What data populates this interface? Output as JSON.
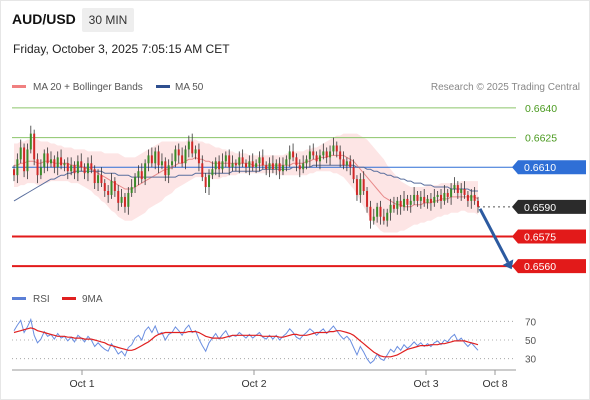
{
  "header": {
    "pair": "AUD/USD",
    "timeframe": "30 MIN",
    "timestamp": "Friday, October 3, 2025 7:05:15 AM CET"
  },
  "legend": {
    "ma20": {
      "label": "MA 20 + Bollinger Bands",
      "color": "#f08080"
    },
    "ma50": {
      "label": "MA 50",
      "color": "#2e4f8f"
    }
  },
  "copyright": "Research © 2025 Trading Central",
  "rsi_legend": {
    "rsi": {
      "label": "RSI",
      "color": "#5b7fd6"
    },
    "ma9": {
      "label": "9MA",
      "color": "#e02020"
    }
  },
  "chart_data": [
    {
      "type": "candlestick",
      "x_ticks": [
        "Oct 1",
        "Oct 2",
        "Oct 3",
        "Oct 8"
      ],
      "ylim": [
        0.6552,
        0.6645
      ],
      "levels": [
        {
          "name": "resistance-2",
          "value": 0.664,
          "label": "0.6640",
          "style": "green-line"
        },
        {
          "name": "resistance-1",
          "value": 0.6625,
          "label": "0.6625",
          "style": "green-line"
        },
        {
          "name": "pivot",
          "value": 0.661,
          "label": "0.6610",
          "style": "blue-tag"
        },
        {
          "name": "last-price",
          "value": 0.659,
          "label": "0.6590",
          "style": "dark-tag"
        },
        {
          "name": "support-1",
          "value": 0.6575,
          "label": "0.6575",
          "style": "red-tag"
        },
        {
          "name": "support-2",
          "value": 0.656,
          "label": "0.6560",
          "style": "red-tag"
        }
      ],
      "close": [
        0.6606,
        0.6614,
        0.662,
        0.6608,
        0.6619,
        0.6627,
        0.6614,
        0.6606,
        0.661,
        0.6617,
        0.6612,
        0.6614,
        0.661,
        0.6615,
        0.6611,
        0.6612,
        0.6608,
        0.6611,
        0.6607,
        0.6613,
        0.661,
        0.6607,
        0.6612,
        0.6609,
        0.6602,
        0.6606,
        0.6602,
        0.6598,
        0.6596,
        0.6603,
        0.6598,
        0.6592,
        0.6595,
        0.659,
        0.6597,
        0.66,
        0.6605,
        0.6608,
        0.6604,
        0.6612,
        0.6616,
        0.6612,
        0.6618,
        0.6611,
        0.6613,
        0.6606,
        0.6611,
        0.6613,
        0.6619,
        0.6616,
        0.6612,
        0.6619,
        0.6623,
        0.6617,
        0.6619,
        0.6612,
        0.6605,
        0.66,
        0.6606,
        0.6609,
        0.6613,
        0.6609,
        0.6613,
        0.6616,
        0.661,
        0.6612,
        0.6611,
        0.6615,
        0.6612,
        0.661,
        0.6613,
        0.661,
        0.6612,
        0.6615,
        0.6611,
        0.6609,
        0.6612,
        0.6609,
        0.6612,
        0.6608,
        0.6611,
        0.6614,
        0.6618,
        0.6615,
        0.6611,
        0.6609,
        0.6612,
        0.6614,
        0.6618,
        0.6616,
        0.6613,
        0.6616,
        0.6618,
        0.6615,
        0.6618,
        0.6621,
        0.6618,
        0.6614,
        0.6611,
        0.6613,
        0.661,
        0.6604,
        0.6596,
        0.6604,
        0.6598,
        0.659,
        0.6583,
        0.6585,
        0.659,
        0.6585,
        0.6583,
        0.6587,
        0.6591,
        0.6589,
        0.6593,
        0.659,
        0.6594,
        0.6591,
        0.6593,
        0.6596,
        0.6593,
        0.6595,
        0.6592,
        0.6594,
        0.6592,
        0.6595,
        0.6596,
        0.6593,
        0.6597,
        0.6595,
        0.6599,
        0.6601,
        0.6597,
        0.6599,
        0.6596,
        0.6593,
        0.6596,
        0.6593,
        0.659
      ],
      "ma20": [
        0.6611,
        0.6611,
        0.6612,
        0.6612,
        0.6613,
        0.6613,
        0.6613,
        0.6612,
        0.6612,
        0.6613,
        0.6613,
        0.6613,
        0.6612,
        0.6612,
        0.6612,
        0.6612,
        0.6612,
        0.6611,
        0.6611,
        0.6611,
        0.661,
        0.661,
        0.6609,
        0.6609,
        0.6608,
        0.6607,
        0.6606,
        0.6605,
        0.6604,
        0.6603,
        0.6602,
        0.6601,
        0.66,
        0.6599,
        0.6599,
        0.6599,
        0.66,
        0.6601,
        0.6602,
        0.6603,
        0.6604,
        0.6605,
        0.6606,
        0.6607,
        0.6608,
        0.6609,
        0.6609,
        0.661,
        0.6611,
        0.6612,
        0.6612,
        0.6613,
        0.6614,
        0.6614,
        0.6615,
        0.6614,
        0.6614,
        0.6613,
        0.6613,
        0.6612,
        0.6612,
        0.6612,
        0.6612,
        0.6612,
        0.6612,
        0.6612,
        0.6612,
        0.6612,
        0.6612,
        0.6612,
        0.6612,
        0.6611,
        0.6611,
        0.6611,
        0.6611,
        0.6611,
        0.6611,
        0.6611,
        0.6611,
        0.6611,
        0.6611,
        0.6611,
        0.6611,
        0.6612,
        0.6612,
        0.6612,
        0.6612,
        0.6613,
        0.6613,
        0.6614,
        0.6614,
        0.6615,
        0.6615,
        0.6615,
        0.6616,
        0.6616,
        0.6616,
        0.6616,
        0.6616,
        0.6615,
        0.6614,
        0.6613,
        0.6611,
        0.6609,
        0.6607,
        0.6605,
        0.6603,
        0.6601,
        0.6599,
        0.6597,
        0.6595,
        0.6594,
        0.6593,
        0.6592,
        0.6591,
        0.6591,
        0.659,
        0.659,
        0.659,
        0.6591,
        0.6591,
        0.6591,
        0.6592,
        0.6592,
        0.6592,
        0.6593,
        0.6593,
        0.6594,
        0.6594,
        0.6594,
        0.6595,
        0.6595,
        0.6595,
        0.6595,
        0.6595,
        0.6595,
        0.6595,
        0.6595,
        0.6594
      ],
      "bb_upper": [
        0.6622,
        0.6622,
        0.6623,
        0.6623,
        0.6624,
        0.6624,
        0.6624,
        0.6624,
        0.6623,
        0.6623,
        0.6623,
        0.6622,
        0.6622,
        0.6621,
        0.6621,
        0.662,
        0.662,
        0.662,
        0.6619,
        0.6619,
        0.6619,
        0.6619,
        0.6618,
        0.6618,
        0.6618,
        0.6618,
        0.6618,
        0.6617,
        0.6617,
        0.6617,
        0.6617,
        0.6617,
        0.6616,
        0.6615,
        0.6615,
        0.6615,
        0.6615,
        0.6616,
        0.6617,
        0.6618,
        0.6619,
        0.662,
        0.6621,
        0.6622,
        0.6623,
        0.6623,
        0.6623,
        0.6623,
        0.6623,
        0.6623,
        0.6623,
        0.6623,
        0.6624,
        0.6624,
        0.6624,
        0.6623,
        0.6623,
        0.6622,
        0.6622,
        0.6621,
        0.662,
        0.662,
        0.6619,
        0.6619,
        0.6618,
        0.6618,
        0.6617,
        0.6617,
        0.6617,
        0.6617,
        0.6616,
        0.6616,
        0.6616,
        0.6616,
        0.6616,
        0.6616,
        0.6616,
        0.6616,
        0.6616,
        0.6616,
        0.6616,
        0.6617,
        0.6617,
        0.6617,
        0.6618,
        0.6618,
        0.6618,
        0.6619,
        0.6619,
        0.662,
        0.662,
        0.6621,
        0.6622,
        0.6623,
        0.6624,
        0.6625,
        0.6626,
        0.6626,
        0.6627,
        0.6627,
        0.6627,
        0.6627,
        0.6627,
        0.6626,
        0.6625,
        0.6624,
        0.6622,
        0.662,
        0.6618,
        0.6616,
        0.6614,
        0.6611,
        0.6609,
        0.6607,
        0.6605,
        0.6603,
        0.6602,
        0.6601,
        0.66,
        0.66,
        0.66,
        0.66,
        0.66,
        0.6601,
        0.6601,
        0.6601,
        0.6601,
        0.6602,
        0.6602,
        0.6602,
        0.6602,
        0.6602,
        0.6602,
        0.6603,
        0.6603,
        0.6603,
        0.6603,
        0.6603,
        0.6603
      ],
      "bb_lower": [
        0.66,
        0.66,
        0.6601,
        0.6601,
        0.6602,
        0.6602,
        0.6602,
        0.6601,
        0.6601,
        0.6602,
        0.6602,
        0.6603,
        0.6603,
        0.6603,
        0.6603,
        0.6603,
        0.6603,
        0.6602,
        0.6602,
        0.6602,
        0.6601,
        0.66,
        0.6599,
        0.6598,
        0.6596,
        0.6595,
        0.6593,
        0.6592,
        0.659,
        0.6588,
        0.6587,
        0.6585,
        0.6584,
        0.6583,
        0.6583,
        0.6583,
        0.6584,
        0.6585,
        0.6586,
        0.6587,
        0.6589,
        0.659,
        0.6591,
        0.6592,
        0.6593,
        0.6595,
        0.6596,
        0.6597,
        0.6599,
        0.66,
        0.6601,
        0.6602,
        0.6603,
        0.6604,
        0.6605,
        0.6605,
        0.6605,
        0.6605,
        0.6605,
        0.6604,
        0.6604,
        0.6604,
        0.6605,
        0.6605,
        0.6606,
        0.6606,
        0.6606,
        0.6607,
        0.6607,
        0.6607,
        0.6607,
        0.6607,
        0.6607,
        0.6607,
        0.6607,
        0.6607,
        0.6607,
        0.6607,
        0.6607,
        0.6606,
        0.6606,
        0.6606,
        0.6606,
        0.6606,
        0.6606,
        0.6606,
        0.6606,
        0.6606,
        0.6607,
        0.6607,
        0.6608,
        0.6608,
        0.6608,
        0.6608,
        0.6608,
        0.6607,
        0.6607,
        0.6606,
        0.6605,
        0.6603,
        0.6601,
        0.6599,
        0.6596,
        0.6593,
        0.659,
        0.6587,
        0.6584,
        0.6582,
        0.658,
        0.6578,
        0.6577,
        0.6577,
        0.6577,
        0.6577,
        0.6577,
        0.6578,
        0.6578,
        0.6579,
        0.658,
        0.6581,
        0.6581,
        0.6582,
        0.6582,
        0.6583,
        0.6583,
        0.6584,
        0.6585,
        0.6585,
        0.6586,
        0.6586,
        0.6587,
        0.6587,
        0.6587,
        0.6588,
        0.6588,
        0.6587,
        0.6587,
        0.6587,
        0.6586,
        0.6585
      ],
      "ma50": [
        0.6593,
        0.6594,
        0.6595,
        0.6596,
        0.6597,
        0.6598,
        0.6599,
        0.66,
        0.6601,
        0.6602,
        0.6603,
        0.6604,
        0.6604,
        0.6605,
        0.6606,
        0.6606,
        0.6607,
        0.6607,
        0.6608,
        0.6608,
        0.6608,
        0.6608,
        0.6608,
        0.6608,
        0.6608,
        0.6608,
        0.6608,
        0.6607,
        0.6607,
        0.6607,
        0.6607,
        0.6606,
        0.6606,
        0.6606,
        0.6606,
        0.6605,
        0.6605,
        0.6605,
        0.6605,
        0.6605,
        0.6605,
        0.6605,
        0.6605,
        0.6605,
        0.6605,
        0.6605,
        0.6605,
        0.6605,
        0.6605,
        0.6606,
        0.6606,
        0.6606,
        0.6606,
        0.6606,
        0.6607,
        0.6607,
        0.6607,
        0.6607,
        0.6607,
        0.6607,
        0.6607,
        0.6607,
        0.6607,
        0.6607,
        0.6607,
        0.6608,
        0.6608,
        0.6608,
        0.6608,
        0.6608,
        0.6608,
        0.6608,
        0.6608,
        0.6608,
        0.6609,
        0.6609,
        0.6609,
        0.6609,
        0.6609,
        0.6609,
        0.6609,
        0.6609,
        0.6609,
        0.661,
        0.661,
        0.661,
        0.661,
        0.661,
        0.661,
        0.6611,
        0.6611,
        0.6611,
        0.6611,
        0.6611,
        0.6611,
        0.6611,
        0.6611,
        0.6611,
        0.6611,
        0.6611,
        0.6611,
        0.6611,
        0.661,
        0.661,
        0.661,
        0.6609,
        0.6609,
        0.6608,
        0.6608,
        0.6607,
        0.6607,
        0.6606,
        0.6606,
        0.6605,
        0.6605,
        0.6604,
        0.6604,
        0.6603,
        0.6603,
        0.6602,
        0.6602,
        0.6602,
        0.6601,
        0.6601,
        0.6601,
        0.66,
        0.66,
        0.66,
        0.66,
        0.66,
        0.6599,
        0.6599,
        0.6599,
        0.6599,
        0.6599,
        0.6599,
        0.6598,
        0.6598,
        0.6598
      ],
      "forecast_arrow": {
        "from": 0.659,
        "to": 0.656
      }
    },
    {
      "type": "line",
      "name": "RSI panel",
      "ylim": [
        20,
        80
      ],
      "y_ticks": [
        "70",
        "50",
        "30"
      ],
      "rsi": [
        60,
        66,
        71,
        58,
        64,
        72,
        55,
        47,
        51,
        59,
        54,
        56,
        51,
        57,
        52,
        54,
        49,
        53,
        48,
        55,
        52,
        48,
        54,
        50,
        43,
        47,
        43,
        40,
        38,
        46,
        41,
        35,
        38,
        33,
        42,
        45,
        52,
        55,
        50,
        60,
        64,
        58,
        65,
        56,
        58,
        50,
        56,
        58,
        64,
        60,
        55,
        62,
        66,
        58,
        60,
        51,
        44,
        38,
        47,
        52,
        57,
        51,
        56,
        60,
        53,
        55,
        54,
        58,
        55,
        52,
        56,
        52,
        55,
        58,
        53,
        51,
        55,
        51,
        55,
        50,
        54,
        57,
        62,
        58,
        53,
        51,
        55,
        58,
        62,
        59,
        55,
        59,
        62,
        57,
        61,
        65,
        60,
        55,
        51,
        54,
        50,
        42,
        34,
        43,
        37,
        30,
        25,
        28,
        35,
        30,
        28,
        34,
        40,
        37,
        43,
        39,
        45,
        41,
        44,
        48,
        44,
        47,
        43,
        46,
        43,
        47,
        49,
        45,
        50,
        48,
        53,
        56,
        49,
        52,
        47,
        43,
        47,
        43,
        39
      ],
      "ma9": [
        58,
        59,
        60,
        61,
        62,
        63,
        62,
        60,
        59,
        58,
        57,
        56,
        55,
        54,
        54,
        54,
        53,
        53,
        52,
        52,
        52,
        51,
        51,
        51,
        50,
        49,
        48,
        47,
        45,
        44,
        43,
        42,
        41,
        40,
        39,
        39,
        40,
        42,
        44,
        46,
        48,
        51,
        54,
        56,
        57,
        58,
        58,
        58,
        58,
        58,
        58,
        58,
        59,
        59,
        59,
        58,
        56,
        54,
        53,
        52,
        52,
        52,
        52,
        53,
        54,
        55,
        55,
        55,
        55,
        55,
        55,
        55,
        55,
        55,
        54,
        54,
        54,
        54,
        54,
        53,
        53,
        54,
        55,
        56,
        56,
        55,
        55,
        55,
        56,
        57,
        58,
        58,
        58,
        58,
        59,
        59,
        60,
        60,
        59,
        58,
        57,
        55,
        52,
        49,
        46,
        43,
        40,
        37,
        35,
        33,
        32,
        32,
        32,
        33,
        34,
        36,
        38,
        40,
        41,
        42,
        43,
        44,
        44,
        44,
        45,
        45,
        45,
        46,
        46,
        47,
        48,
        49,
        49,
        49,
        49,
        48,
        47,
        46,
        45
      ]
    }
  ]
}
